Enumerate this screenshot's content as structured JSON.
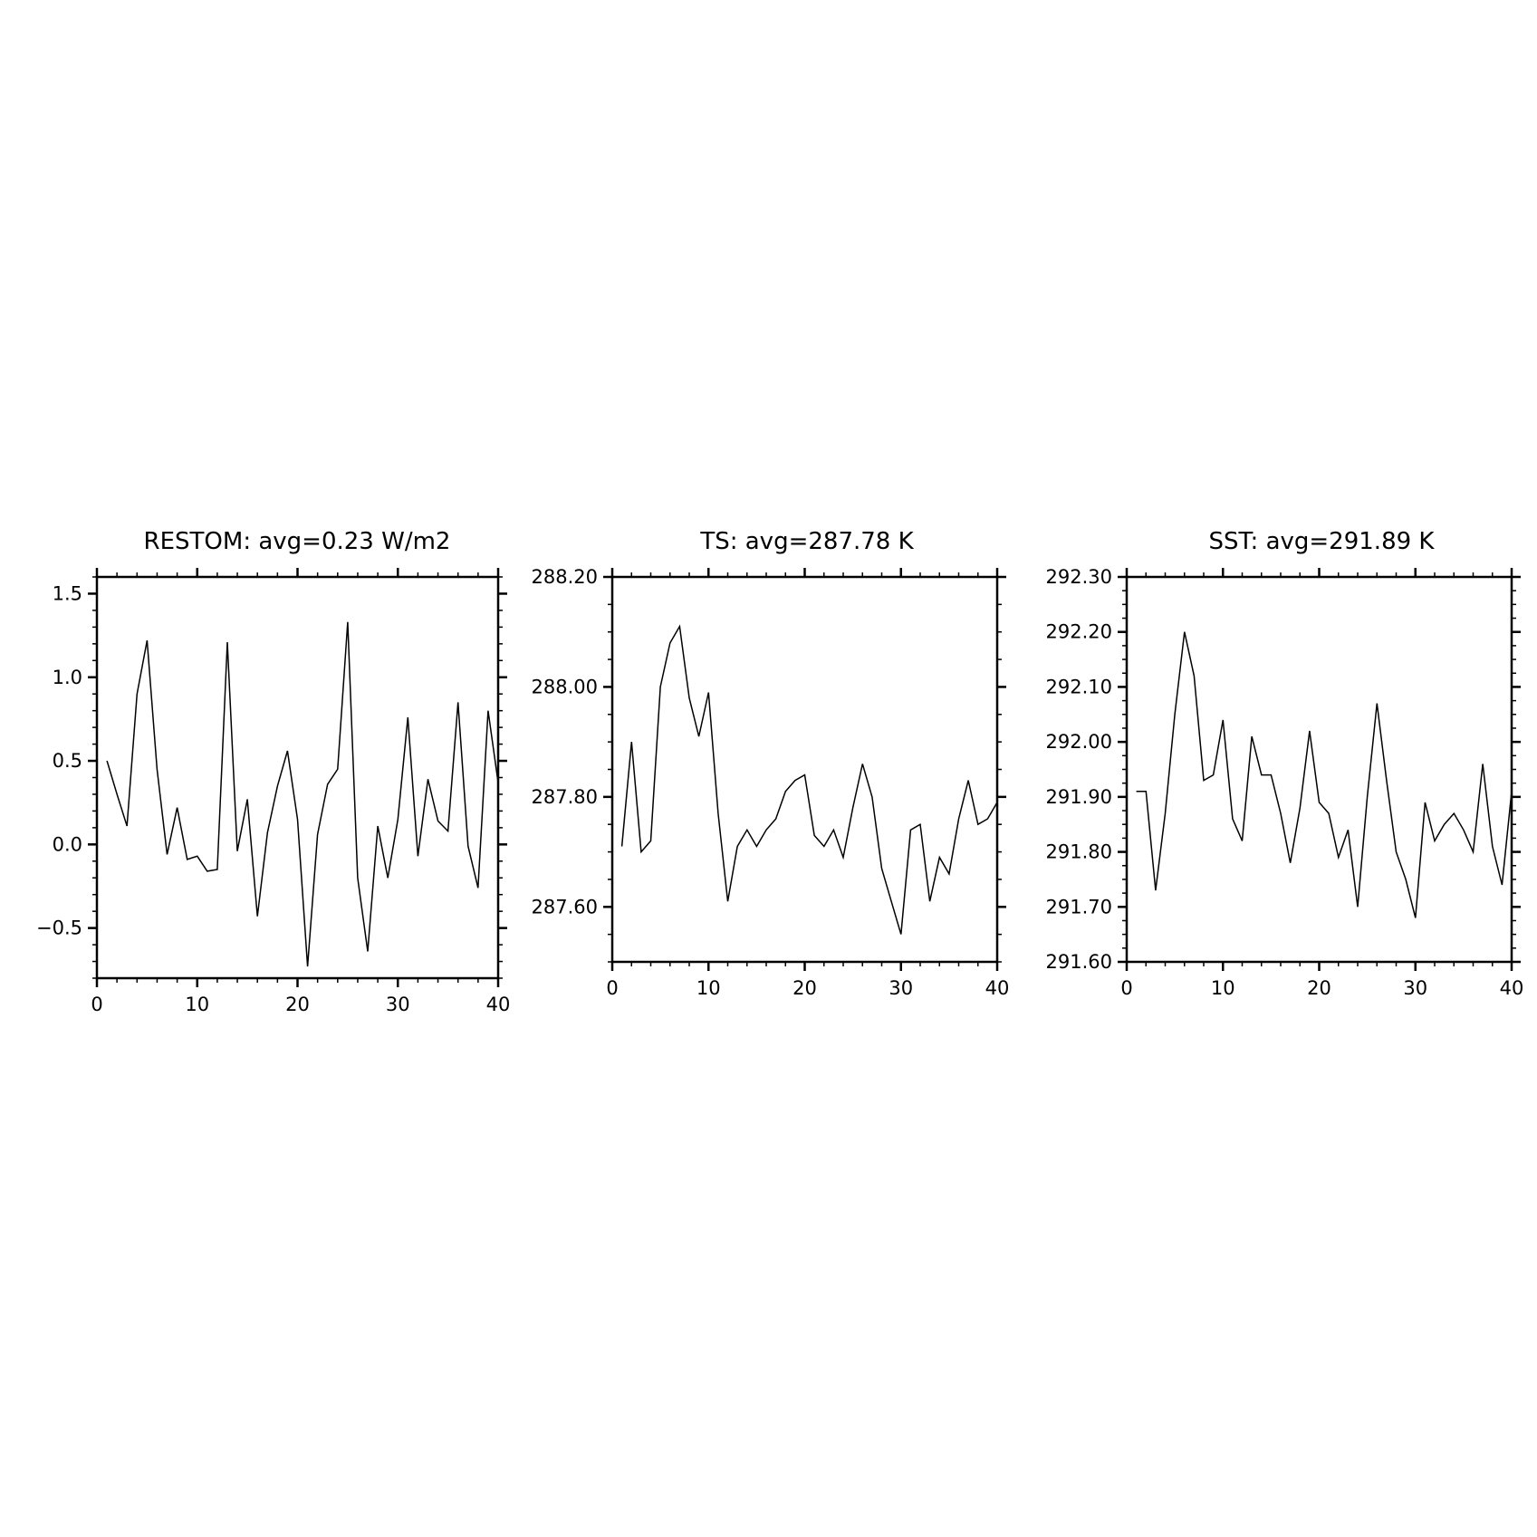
{
  "chart_data": [
    {
      "type": "line",
      "title": "RESTOM: avg=0.23 W/m2",
      "xlim": [
        0,
        40
      ],
      "ylim": [
        -0.8,
        1.6
      ],
      "x_ticks": [
        0,
        10,
        20,
        30,
        40
      ],
      "x_tick_labels": [
        "0",
        "10",
        "20",
        "30",
        "40"
      ],
      "y_ticks": [
        -0.5,
        0.0,
        0.5,
        1.0,
        1.5
      ],
      "y_tick_labels": [
        "−0.5",
        "0.0",
        "0.5",
        "1.0",
        "1.5"
      ],
      "y_minor_step": 0.1,
      "x_minor_step": 2,
      "grid": false,
      "x": [
        1,
        2,
        3,
        4,
        5,
        6,
        7,
        8,
        9,
        10,
        11,
        12,
        13,
        14,
        15,
        16,
        17,
        18,
        19,
        20,
        21,
        22,
        23,
        24,
        25,
        26,
        27,
        28,
        29,
        30,
        31,
        32,
        33,
        34,
        35,
        36,
        37,
        38,
        39,
        40
      ],
      "values": [
        0.5,
        0.3,
        0.11,
        0.9,
        1.22,
        0.45,
        -0.06,
        0.22,
        -0.09,
        -0.07,
        -0.16,
        -0.15,
        1.21,
        -0.04,
        0.27,
        -0.43,
        0.07,
        0.35,
        0.56,
        0.15,
        -0.73,
        0.06,
        0.36,
        0.45,
        1.33,
        -0.2,
        -0.64,
        0.11,
        -0.2,
        0.15,
        0.76,
        -0.07,
        0.39,
        0.14,
        0.08,
        0.85,
        -0.01,
        -0.26,
        0.8,
        0.37
      ]
    },
    {
      "type": "line",
      "title": "TS: avg=287.78 K",
      "xlim": [
        0,
        40
      ],
      "ylim": [
        287.5,
        288.2
      ],
      "x_ticks": [
        0,
        10,
        20,
        30,
        40
      ],
      "x_tick_labels": [
        "0",
        "10",
        "20",
        "30",
        "40"
      ],
      "y_ticks": [
        287.6,
        287.8,
        288.0,
        288.2
      ],
      "y_tick_labels": [
        "287.60",
        "287.80",
        "288.00",
        "288.20"
      ],
      "y_minor_step": 0.05,
      "x_minor_step": 2,
      "grid": false,
      "x": [
        1,
        2,
        3,
        4,
        5,
        6,
        7,
        8,
        9,
        10,
        11,
        12,
        13,
        14,
        15,
        16,
        17,
        18,
        19,
        20,
        21,
        22,
        23,
        24,
        25,
        26,
        27,
        28,
        29,
        30,
        31,
        32,
        33,
        34,
        35,
        36,
        37,
        38,
        39,
        40
      ],
      "values": [
        287.71,
        287.9,
        287.7,
        287.72,
        288.0,
        288.08,
        288.11,
        287.98,
        287.91,
        287.99,
        287.77,
        287.61,
        287.71,
        287.74,
        287.71,
        287.74,
        287.76,
        287.81,
        287.83,
        287.84,
        287.73,
        287.71,
        287.74,
        287.69,
        287.78,
        287.86,
        287.8,
        287.67,
        287.61,
        287.55,
        287.74,
        287.75,
        287.61,
        287.69,
        287.66,
        287.76,
        287.83,
        287.75,
        287.76,
        287.79
      ]
    },
    {
      "type": "line",
      "title": "SST: avg=291.89 K",
      "xlim": [
        0,
        40
      ],
      "ylim": [
        291.6,
        292.3
      ],
      "x_ticks": [
        0,
        10,
        20,
        30,
        40
      ],
      "x_tick_labels": [
        "0",
        "10",
        "20",
        "30",
        "40"
      ],
      "y_ticks": [
        291.6,
        291.7,
        291.8,
        291.9,
        292.0,
        292.1,
        292.2,
        292.3
      ],
      "y_tick_labels": [
        "291.60",
        "291.70",
        "291.80",
        "291.90",
        "292.00",
        "292.10",
        "292.20",
        "292.30"
      ],
      "y_minor_step": 0.025,
      "x_minor_step": 2,
      "grid": false,
      "x": [
        1,
        2,
        3,
        4,
        5,
        6,
        7,
        8,
        9,
        10,
        11,
        12,
        13,
        14,
        15,
        16,
        17,
        18,
        19,
        20,
        21,
        22,
        23,
        24,
        25,
        26,
        27,
        28,
        29,
        30,
        31,
        32,
        33,
        34,
        35,
        36,
        37,
        38,
        39,
        40
      ],
      "values": [
        291.91,
        291.91,
        291.73,
        291.87,
        292.05,
        292.2,
        292.12,
        291.93,
        291.94,
        292.04,
        291.86,
        291.82,
        292.01,
        291.94,
        291.94,
        291.87,
        291.78,
        291.88,
        292.02,
        291.89,
        291.87,
        291.79,
        291.84,
        291.7,
        291.9,
        292.07,
        291.93,
        291.8,
        291.75,
        291.68,
        291.89,
        291.82,
        291.85,
        291.87,
        291.84,
        291.8,
        291.96,
        291.81,
        291.74,
        291.91
      ]
    }
  ]
}
